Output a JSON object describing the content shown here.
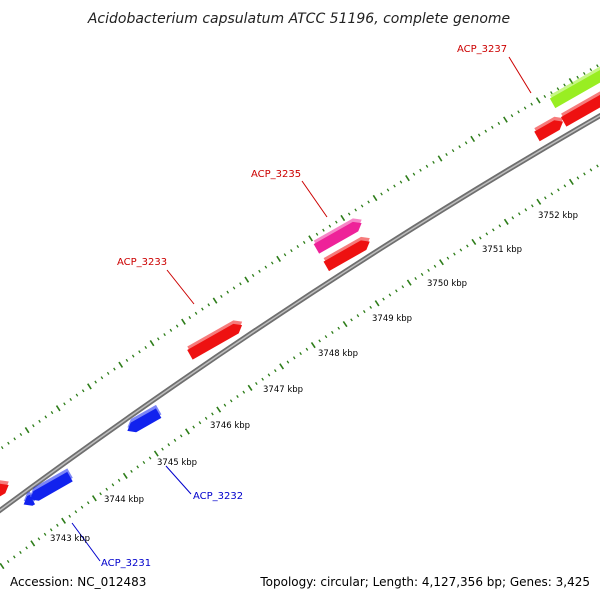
{
  "title": "Acidobacterium capsulatum ATCC 51196, complete genome",
  "footer": {
    "accession": "Accession: NC_012483",
    "summary": "Topology: circular; Length: 4,127,356 bp; Genes: 3,425"
  },
  "colors": {
    "backbone": "#888888",
    "tick": "#2e7d1a",
    "forward_label": "#cc0000",
    "reverse_label": "#0000cc",
    "gene_red": "#ee1111",
    "gene_magenta": "#ee2299",
    "gene_lime": "#99ee22",
    "gene_blue": "#1122ee"
  },
  "scale_labels": [
    "3743 kbp",
    "3744 kbp",
    "3745 kbp",
    "3746 kbp",
    "3747 kbp",
    "3748 kbp",
    "3749 kbp",
    "3750 kbp",
    "3751 kbp",
    "3752 kbp"
  ],
  "gene_labels": [
    {
      "text": "ACP_3237",
      "strand": "forward"
    },
    {
      "text": "ACP_3235",
      "strand": "forward"
    },
    {
      "text": "ACP_3233",
      "strand": "forward"
    },
    {
      "text": "ACP_3232",
      "strand": "reverse"
    },
    {
      "text": "ACP_3231",
      "strand": "reverse"
    }
  ]
}
